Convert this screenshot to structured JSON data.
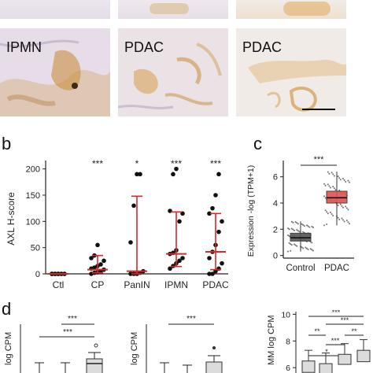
{
  "panel_a": {
    "labels": [
      "IPMN",
      "PDAC",
      "PDAC"
    ]
  },
  "panel_b": {
    "letter": "b",
    "chart_data": {
      "type": "scatter",
      "ylabel": "AXL H-score",
      "categories": [
        "Ctl",
        "CP",
        "PanIN",
        "IPMN",
        "PDAC"
      ],
      "yticks": [
        0,
        50,
        100,
        150,
        200
      ],
      "ylim": [
        0,
        210
      ],
      "significance": [
        "",
        "***",
        "*",
        "***",
        "***"
      ],
      "medians": [
        0,
        8,
        5,
        38,
        42
      ],
      "iqr_low": [
        0,
        2,
        0,
        14,
        8
      ],
      "iqr_high": [
        0,
        35,
        148,
        118,
        115
      ],
      "points": [
        [
          0,
          0,
          0,
          0,
          0,
          0,
          0,
          0,
          0,
          0,
          0,
          0,
          0
        ],
        [
          0,
          2,
          3,
          5,
          8,
          10,
          12,
          15,
          18,
          25,
          30,
          35,
          55
        ],
        [
          0,
          0,
          0,
          2,
          5,
          60,
          130,
          190,
          190
        ],
        [
          10,
          15,
          20,
          25,
          30,
          38,
          40,
          45,
          100,
          115,
          120,
          190,
          200
        ],
        [
          0,
          0,
          5,
          10,
          20,
          30,
          42,
          55,
          80,
          100,
          115,
          125,
          150,
          190
        ]
      ],
      "series_color": "#d42a2a"
    }
  },
  "panel_c": {
    "letter": "c",
    "chart_data": {
      "type": "box",
      "ylabel": "Expression -log  (TPM+1)",
      "categories": [
        "Control",
        "PDAC"
      ],
      "yticks": [
        0,
        2,
        4,
        6
      ],
      "ylim": [
        -0.2,
        7
      ],
      "significance": "***",
      "boxes": [
        {
          "name": "Control",
          "q1": 1.1,
          "median": 1.35,
          "q3": 1.7,
          "low": 0.3,
          "high": 2.6,
          "color": "#555555"
        },
        {
          "name": "PDAC",
          "q1": 4.0,
          "median": 4.4,
          "q3": 4.9,
          "low": 2.3,
          "high": 6.4,
          "color": "#e05252"
        }
      ]
    }
  },
  "panel_d": {
    "letter": "d",
    "plots": [
      {
        "ylabel": "log CPM",
        "significance": [
          "***",
          "***"
        ]
      },
      {
        "ylabel": "log CPM",
        "significance": [
          "***"
        ]
      },
      {
        "ylabel": "MM log CPM",
        "yticks": [
          6,
          8,
          10
        ],
        "significance": [
          "***",
          "***",
          "**",
          "**",
          "***",
          "*"
        ]
      }
    ]
  }
}
